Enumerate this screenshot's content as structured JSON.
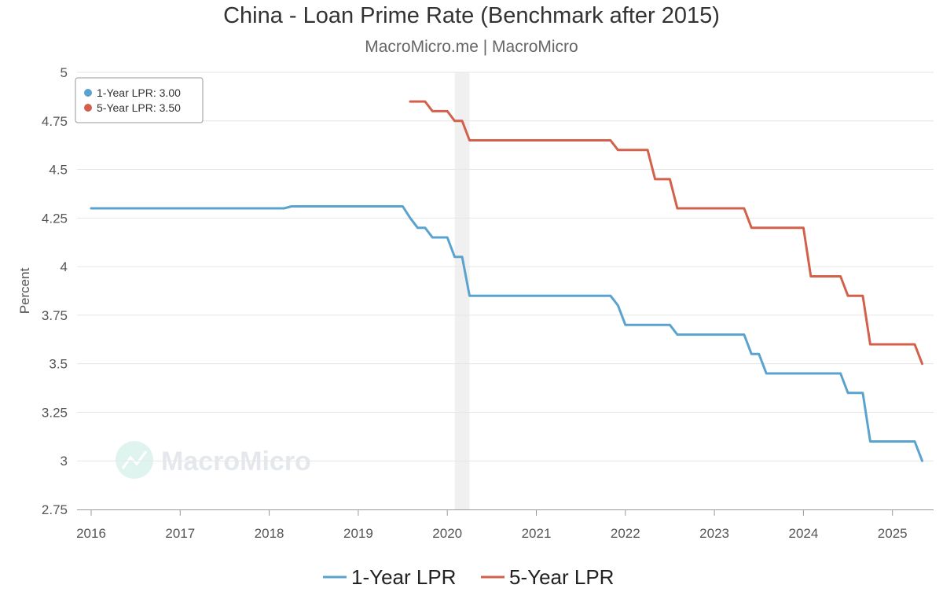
{
  "chart_data": {
    "type": "line",
    "title": "China - Loan Prime Rate (Benchmark after 2015)",
    "subtitle": "MacroMicro.me | MacroMicro",
    "ylabel": "Percent",
    "xlabel": "",
    "ylim": [
      2.75,
      5
    ],
    "y_ticks": [
      "5",
      "4.75",
      "4.5",
      "4.25",
      "4",
      "3.75",
      "3.5",
      "3.25",
      "3",
      "2.75"
    ],
    "x_ticks": [
      "2016",
      "2017",
      "2018",
      "2019",
      "2020",
      "2021",
      "2022",
      "2023",
      "2024",
      "2025"
    ],
    "grid": true,
    "shaded_period": {
      "start": "2020-02",
      "end": "2020-04"
    },
    "watermark": "MacroMicro",
    "tooltip": [
      "1-Year LPR: 3.00",
      "5-Year LPR: 3.50"
    ],
    "series": [
      {
        "name": "1-Year LPR",
        "color": "#5ba3cf",
        "step": true,
        "points": [
          [
            "2016-01",
            4.3
          ],
          [
            "2018-03",
            4.3
          ],
          [
            "2018-04",
            4.31
          ],
          [
            "2019-07",
            4.31
          ],
          [
            "2019-08",
            4.25
          ],
          [
            "2019-09",
            4.2
          ],
          [
            "2019-10",
            4.2
          ],
          [
            "2019-11",
            4.15
          ],
          [
            "2020-01",
            4.15
          ],
          [
            "2020-02",
            4.05
          ],
          [
            "2020-03",
            4.05
          ],
          [
            "2020-04",
            3.85
          ],
          [
            "2021-11",
            3.85
          ],
          [
            "2021-12",
            3.8
          ],
          [
            "2022-01",
            3.7
          ],
          [
            "2022-07",
            3.7
          ],
          [
            "2022-08",
            3.65
          ],
          [
            "2023-05",
            3.65
          ],
          [
            "2023-06",
            3.55
          ],
          [
            "2023-07",
            3.55
          ],
          [
            "2023-08",
            3.45
          ],
          [
            "2024-06",
            3.45
          ],
          [
            "2024-07",
            3.35
          ],
          [
            "2024-09",
            3.35
          ],
          [
            "2024-10",
            3.1
          ],
          [
            "2025-04",
            3.1
          ],
          [
            "2025-05",
            3.0
          ]
        ]
      },
      {
        "name": "5-Year LPR",
        "color": "#d2604a",
        "step": true,
        "points": [
          [
            "2019-08",
            4.85
          ],
          [
            "2019-10",
            4.85
          ],
          [
            "2019-11",
            4.8
          ],
          [
            "2020-01",
            4.8
          ],
          [
            "2020-02",
            4.75
          ],
          [
            "2020-03",
            4.75
          ],
          [
            "2020-04",
            4.65
          ],
          [
            "2021-11",
            4.65
          ],
          [
            "2021-12",
            4.6
          ],
          [
            "2022-04",
            4.6
          ],
          [
            "2022-05",
            4.45
          ],
          [
            "2022-07",
            4.45
          ],
          [
            "2022-08",
            4.3
          ],
          [
            "2023-05",
            4.3
          ],
          [
            "2023-06",
            4.2
          ],
          [
            "2024-01",
            4.2
          ],
          [
            "2024-02",
            3.95
          ],
          [
            "2024-06",
            3.95
          ],
          [
            "2024-07",
            3.85
          ],
          [
            "2024-09",
            3.85
          ],
          [
            "2024-10",
            3.6
          ],
          [
            "2025-04",
            3.6
          ],
          [
            "2025-05",
            3.5
          ]
        ]
      }
    ],
    "legend": {
      "position": "bottom",
      "items": [
        "1-Year LPR",
        "5-Year LPR"
      ]
    }
  }
}
